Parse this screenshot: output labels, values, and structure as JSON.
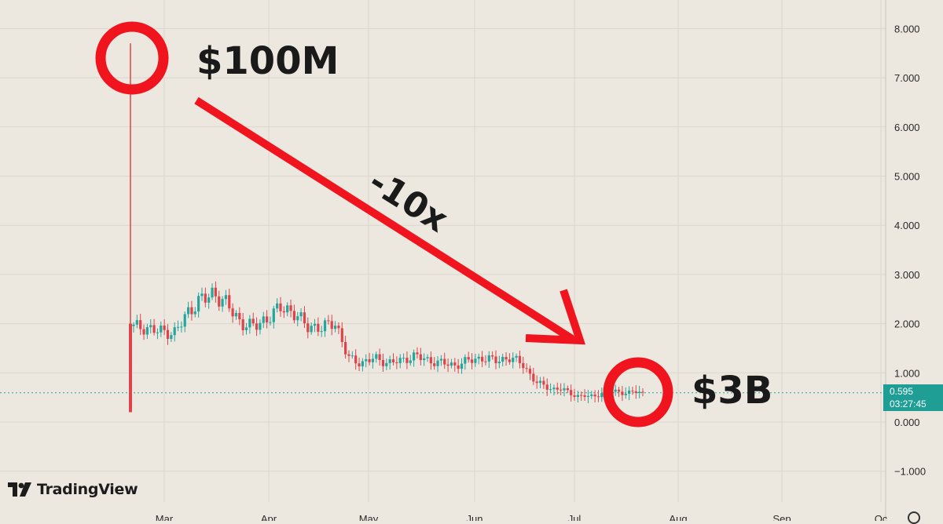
{
  "chart_data": {
    "type": "candlestick",
    "ylim": [
      -1.5,
      8.5
    ],
    "y_ticks": [
      "8.000",
      "7.000",
      "6.000",
      "5.000",
      "4.000",
      "3.000",
      "2.000",
      "1.000",
      "0.000",
      "−1.000"
    ],
    "y_tick_values": [
      8,
      7,
      6,
      5,
      4,
      3,
      2,
      1,
      0,
      -1
    ],
    "x_ticks": [
      "Mar",
      "Apr",
      "May",
      "Jun",
      "Jul",
      "Aug",
      "Sep",
      "Oc"
    ],
    "current_price": "0.595",
    "countdown": "03:27:45",
    "first_candle": {
      "open": 1.95,
      "high": 7.7,
      "low": 0.2,
      "close": 1.95
    },
    "close_path": [
      1.95,
      1.9,
      1.85,
      1.8,
      2.2,
      2.5,
      2.6,
      2.4,
      2.0,
      1.95,
      2.1,
      2.35,
      2.2,
      1.95,
      1.9,
      2.05,
      1.3,
      1.2,
      1.3,
      1.2,
      1.25,
      1.35,
      1.25,
      1.2,
      1.15,
      1.25,
      1.3,
      1.25,
      1.3,
      1.2,
      0.8,
      0.7,
      0.65,
      0.55,
      0.5,
      0.6,
      0.62,
      0.6,
      0.595
    ],
    "colors": {
      "up": "#22a69e",
      "down": "#e0424a",
      "annotation": "#f0141e",
      "price_line": "#22a69e"
    }
  },
  "annotations": {
    "top_label": "$100M",
    "bottom_label": "$3B",
    "arrow_label": "-10x"
  },
  "branding": {
    "logo_text": "TradingView",
    "logo_icon": "tradingview-logo-icon",
    "settings_icon": "gear-icon"
  }
}
